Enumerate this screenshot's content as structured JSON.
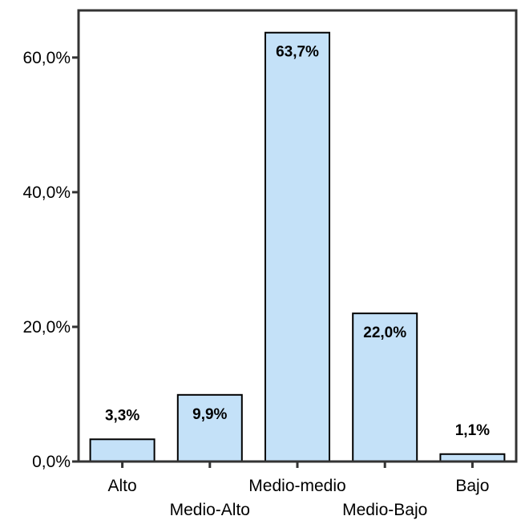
{
  "chart_data": {
    "type": "bar",
    "categories": [
      "Alto",
      "Medio-Alto",
      "Medio-medio",
      "Medio-Bajo",
      "Bajo"
    ],
    "values": [
      3.3,
      9.9,
      63.7,
      22.0,
      1.1
    ],
    "value_labels": [
      "3,3%",
      "9,9%",
      "63,7%",
      "22,0%",
      "1,1%"
    ],
    "y_ticks": [
      {
        "value": 0,
        "label": "0,0%"
      },
      {
        "value": 20,
        "label": "20,0%"
      },
      {
        "value": 40,
        "label": "40,0%"
      },
      {
        "value": 60,
        "label": "60,0%"
      }
    ],
    "ylim": [
      0,
      67
    ],
    "title": "",
    "xlabel": "",
    "ylabel": "",
    "grid": false,
    "colors": {
      "bar_fill": "#c4e1f8",
      "bar_stroke": "#000000",
      "axis": "#333333"
    }
  }
}
